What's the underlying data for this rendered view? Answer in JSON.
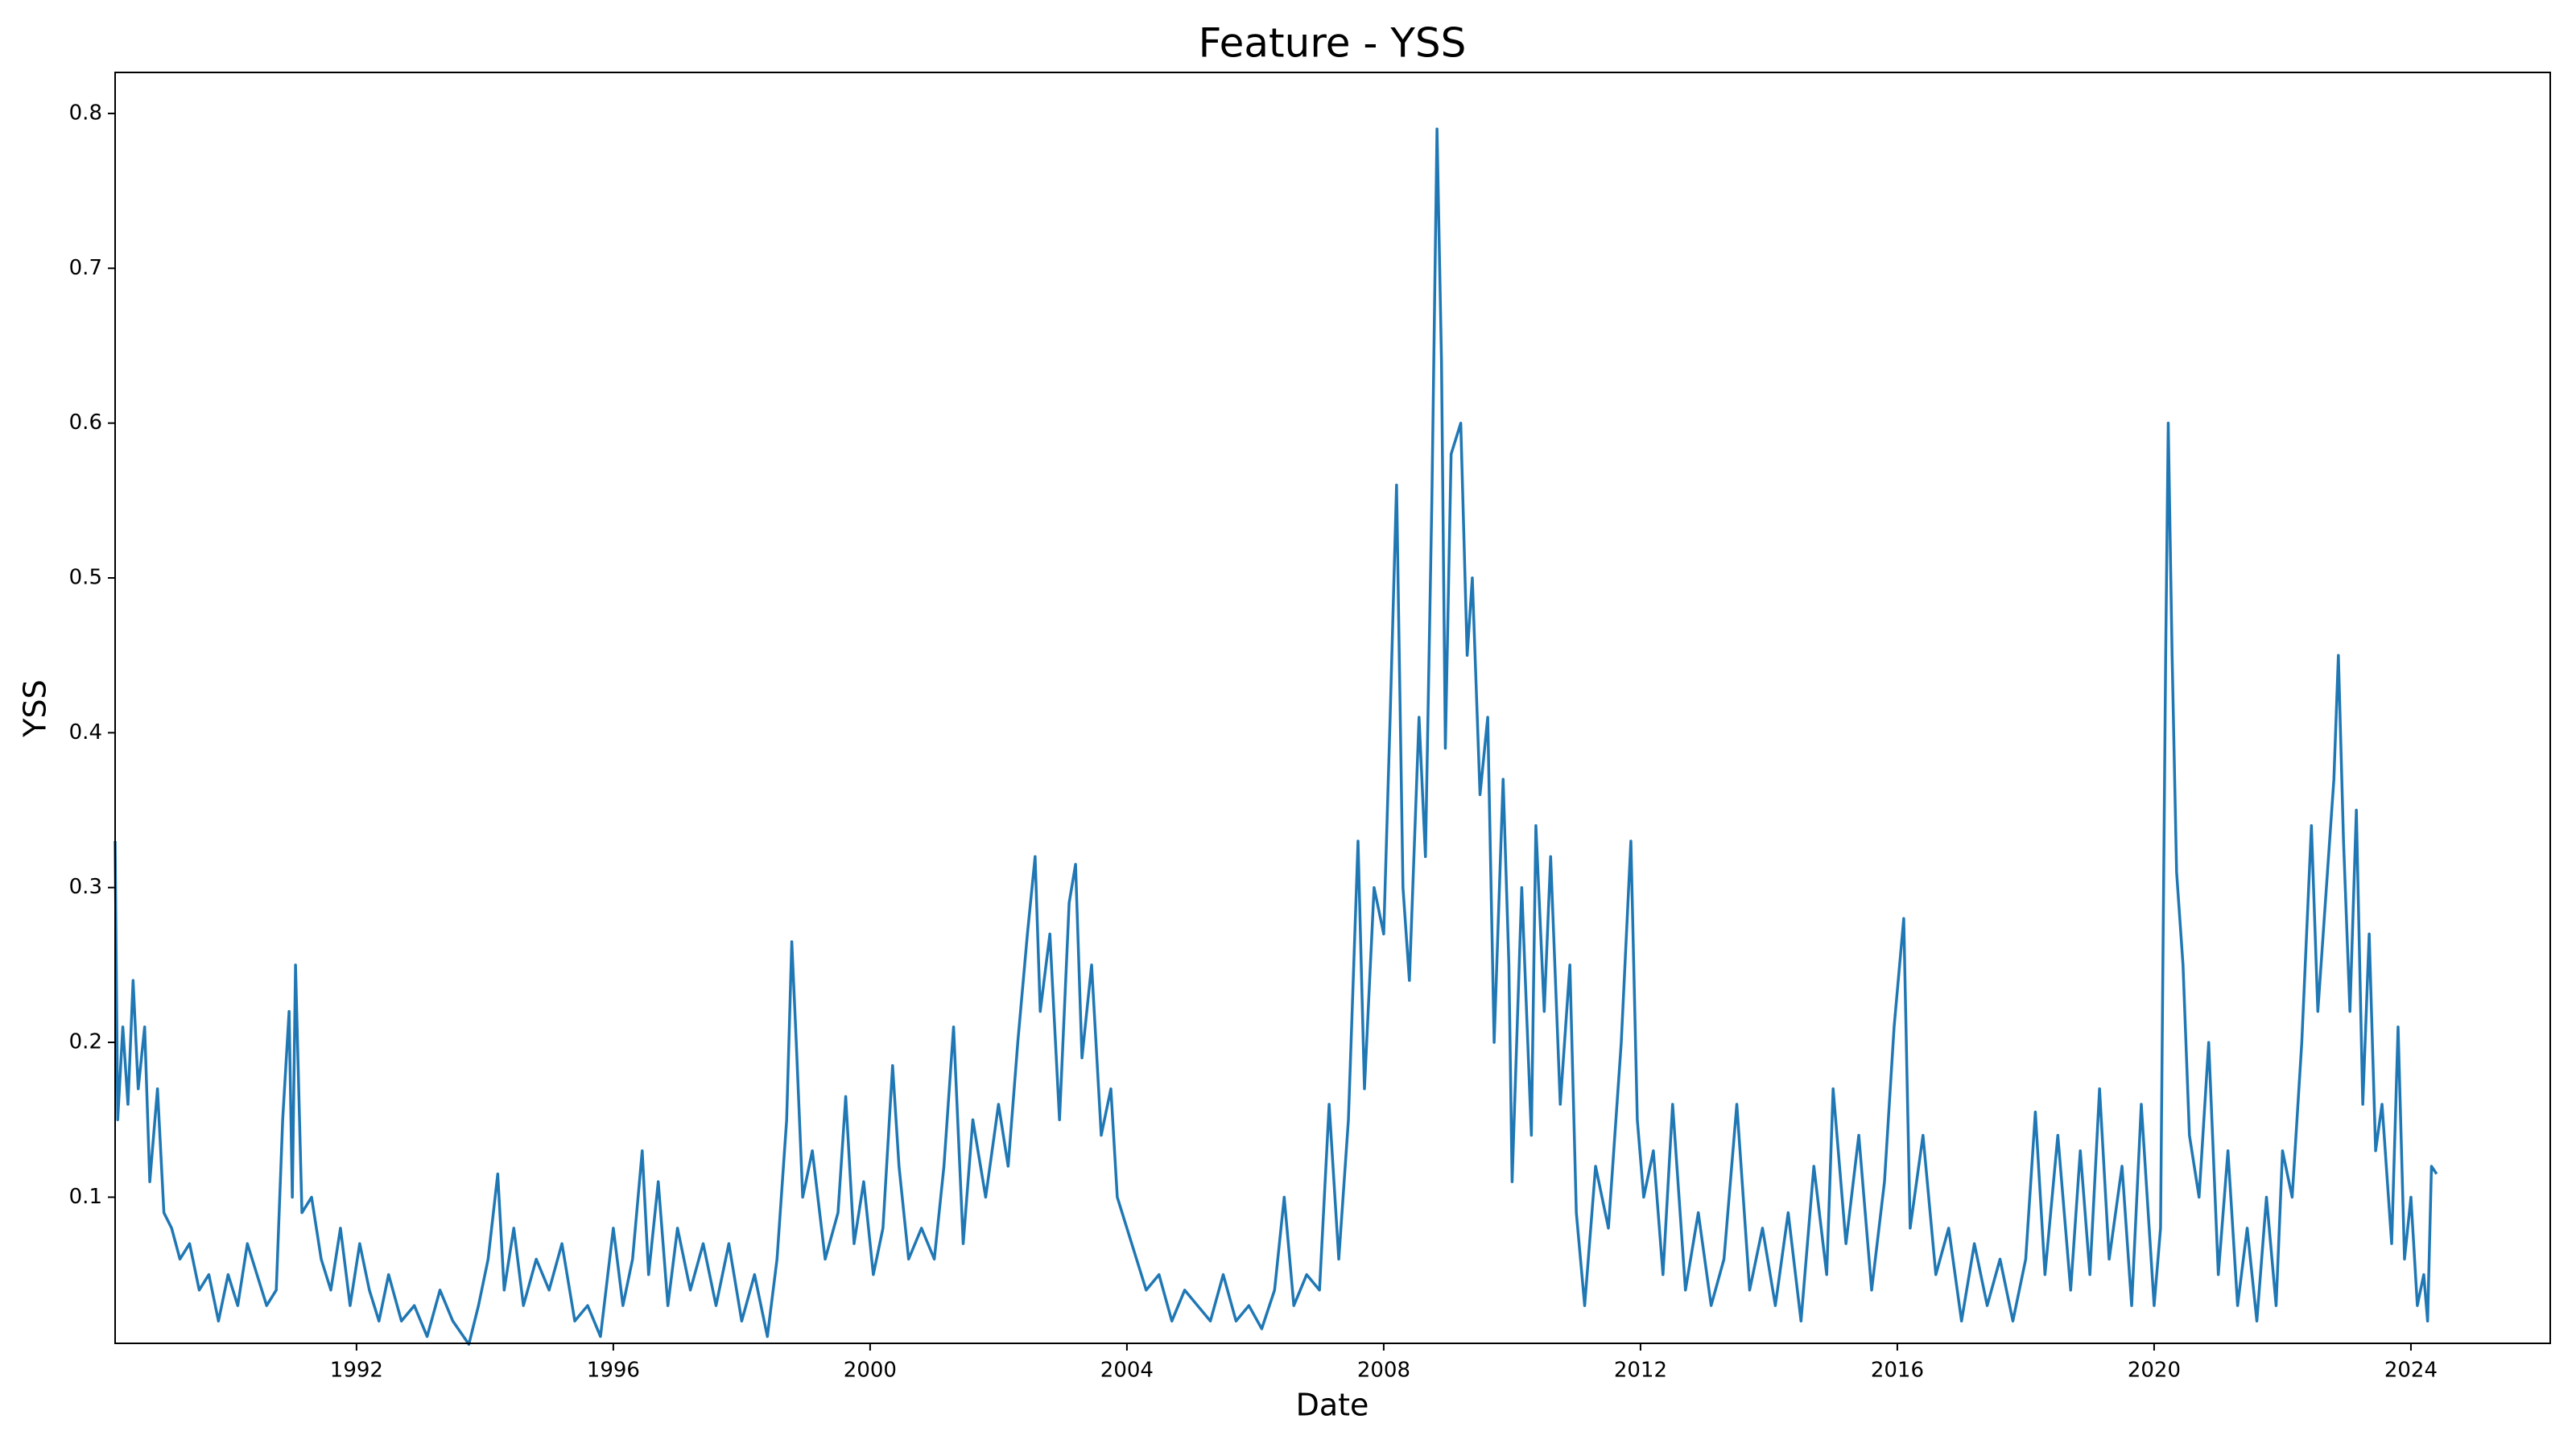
{
  "chart_data": {
    "type": "line",
    "title": "Feature - YSS",
    "x_label": "Date",
    "y_label": "YSS",
    "color": "#1f77b4",
    "x": [
      1988.24,
      1988.28,
      1988.36,
      1988.44,
      1988.52,
      1988.6,
      1988.7,
      1988.78,
      1988.9,
      1989.0,
      1989.12,
      1989.25,
      1989.4,
      1989.55,
      1989.7,
      1989.85,
      1990.0,
      1990.15,
      1990.3,
      1990.45,
      1990.6,
      1990.75,
      1990.85,
      1990.95,
      1991.0,
      1991.05,
      1991.15,
      1991.3,
      1991.45,
      1991.6,
      1991.75,
      1991.9,
      1992.05,
      1992.2,
      1992.35,
      1992.5,
      1992.7,
      1992.9,
      1993.1,
      1993.3,
      1993.5,
      1993.75,
      1993.9,
      1994.05,
      1994.2,
      1994.3,
      1994.45,
      1994.6,
      1994.8,
      1995.0,
      1995.2,
      1995.4,
      1995.6,
      1995.8,
      1996.0,
      1996.15,
      1996.3,
      1996.45,
      1996.55,
      1996.7,
      1996.85,
      1997.0,
      1997.2,
      1997.4,
      1997.6,
      1997.8,
      1998.0,
      1998.2,
      1998.4,
      1998.55,
      1998.7,
      1998.78,
      1998.85,
      1998.95,
      1999.1,
      1999.3,
      1999.5,
      1999.62,
      1999.75,
      1999.9,
      2000.05,
      2000.2,
      2000.35,
      2000.45,
      2000.6,
      2000.8,
      2001.0,
      2001.15,
      2001.3,
      2001.45,
      2001.6,
      2001.8,
      2002.0,
      2002.15,
      2002.3,
      2002.45,
      2002.57,
      2002.65,
      2002.8,
      2002.95,
      2003.1,
      2003.2,
      2003.3,
      2003.45,
      2003.6,
      2003.75,
      2003.85,
      2004.0,
      2004.15,
      2004.3,
      2004.5,
      2004.7,
      2004.9,
      2005.1,
      2005.3,
      2005.5,
      2005.7,
      2005.9,
      2006.1,
      2006.3,
      2006.45,
      2006.6,
      2006.8,
      2007.0,
      2007.15,
      2007.3,
      2007.45,
      2007.6,
      2007.7,
      2007.85,
      2008.0,
      2008.1,
      2008.2,
      2008.3,
      2008.4,
      2008.55,
      2008.65,
      2008.75,
      2008.83,
      2008.9,
      2008.96,
      2009.05,
      2009.2,
      2009.3,
      2009.38,
      2009.5,
      2009.62,
      2009.72,
      2009.86,
      2009.95,
      2010.0,
      2010.15,
      2010.3,
      2010.37,
      2010.5,
      2010.6,
      2010.75,
      2010.9,
      2011.0,
      2011.13,
      2011.3,
      2011.5,
      2011.7,
      2011.85,
      2011.95,
      2012.05,
      2012.2,
      2012.35,
      2012.5,
      2012.7,
      2012.9,
      2013.1,
      2013.3,
      2013.5,
      2013.7,
      2013.9,
      2014.1,
      2014.3,
      2014.5,
      2014.7,
      2014.9,
      2015.0,
      2015.2,
      2015.4,
      2015.6,
      2015.8,
      2015.95,
      2016.1,
      2016.2,
      2016.4,
      2016.6,
      2016.8,
      2017.0,
      2017.2,
      2017.4,
      2017.6,
      2017.8,
      2018.0,
      2018.15,
      2018.3,
      2018.5,
      2018.7,
      2018.85,
      2019.0,
      2019.15,
      2019.3,
      2019.5,
      2019.65,
      2019.8,
      2020.0,
      2020.1,
      2020.18,
      2020.22,
      2020.28,
      2020.35,
      2020.45,
      2020.55,
      2020.7,
      2020.85,
      2021.0,
      2021.15,
      2021.3,
      2021.45,
      2021.6,
      2021.75,
      2021.9,
      2022.0,
      2022.15,
      2022.3,
      2022.45,
      2022.55,
      2022.7,
      2022.8,
      2022.87,
      2022.95,
      2023.05,
      2023.15,
      2023.25,
      2023.35,
      2023.45,
      2023.55,
      2023.7,
      2023.8,
      2023.9,
      2024.0,
      2024.1,
      2024.2,
      2024.26,
      2024.32,
      2024.4
    ],
    "values": [
      0.33,
      0.15,
      0.21,
      0.16,
      0.24,
      0.17,
      0.21,
      0.11,
      0.17,
      0.09,
      0.08,
      0.06,
      0.07,
      0.04,
      0.05,
      0.02,
      0.05,
      0.03,
      0.07,
      0.05,
      0.03,
      0.04,
      0.15,
      0.22,
      0.1,
      0.25,
      0.09,
      0.1,
      0.06,
      0.04,
      0.08,
      0.03,
      0.07,
      0.04,
      0.02,
      0.05,
      0.02,
      0.03,
      0.01,
      0.04,
      0.02,
      0.005,
      0.03,
      0.06,
      0.115,
      0.04,
      0.08,
      0.03,
      0.06,
      0.04,
      0.07,
      0.02,
      0.03,
      0.01,
      0.08,
      0.03,
      0.06,
      0.13,
      0.05,
      0.11,
      0.03,
      0.08,
      0.04,
      0.07,
      0.03,
      0.07,
      0.02,
      0.05,
      0.01,
      0.06,
      0.15,
      0.265,
      0.2,
      0.1,
      0.13,
      0.06,
      0.09,
      0.165,
      0.07,
      0.11,
      0.05,
      0.08,
      0.185,
      0.12,
      0.06,
      0.08,
      0.06,
      0.12,
      0.21,
      0.07,
      0.15,
      0.1,
      0.16,
      0.12,
      0.2,
      0.27,
      0.32,
      0.22,
      0.27,
      0.15,
      0.29,
      0.315,
      0.19,
      0.25,
      0.14,
      0.17,
      0.1,
      0.08,
      0.06,
      0.04,
      0.05,
      0.02,
      0.04,
      0.03,
      0.02,
      0.05,
      0.02,
      0.03,
      0.015,
      0.04,
      0.1,
      0.03,
      0.05,
      0.04,
      0.16,
      0.06,
      0.15,
      0.33,
      0.17,
      0.3,
      0.27,
      0.41,
      0.56,
      0.3,
      0.24,
      0.41,
      0.32,
      0.55,
      0.79,
      0.64,
      0.39,
      0.58,
      0.6,
      0.45,
      0.5,
      0.36,
      0.41,
      0.2,
      0.37,
      0.25,
      0.11,
      0.3,
      0.14,
      0.34,
      0.22,
      0.32,
      0.16,
      0.25,
      0.09,
      0.03,
      0.12,
      0.08,
      0.2,
      0.33,
      0.15,
      0.1,
      0.13,
      0.05,
      0.16,
      0.04,
      0.09,
      0.03,
      0.06,
      0.16,
      0.04,
      0.08,
      0.03,
      0.09,
      0.02,
      0.12,
      0.05,
      0.17,
      0.07,
      0.14,
      0.04,
      0.11,
      0.21,
      0.28,
      0.08,
      0.14,
      0.05,
      0.08,
      0.02,
      0.07,
      0.03,
      0.06,
      0.02,
      0.06,
      0.155,
      0.05,
      0.14,
      0.04,
      0.13,
      0.05,
      0.17,
      0.06,
      0.12,
      0.03,
      0.16,
      0.03,
      0.08,
      0.45,
      0.6,
      0.45,
      0.31,
      0.25,
      0.14,
      0.1,
      0.2,
      0.05,
      0.13,
      0.03,
      0.08,
      0.02,
      0.1,
      0.03,
      0.13,
      0.1,
      0.2,
      0.34,
      0.22,
      0.31,
      0.37,
      0.45,
      0.33,
      0.22,
      0.35,
      0.16,
      0.27,
      0.13,
      0.16,
      0.07,
      0.21,
      0.06,
      0.1,
      0.03,
      0.05,
      0.02,
      0.12,
      0.115
    ],
    "xlim": [
      1988.24,
      2026.17
    ],
    "xticks": [
      1992,
      1996,
      2000,
      2004,
      2008,
      2012,
      2016,
      2020,
      2024
    ],
    "ylim": [
      0.0056,
      0.8265
    ],
    "yticks": [
      0.1,
      0.2,
      0.3,
      0.4,
      0.5,
      0.6,
      0.7,
      0.8
    ]
  }
}
